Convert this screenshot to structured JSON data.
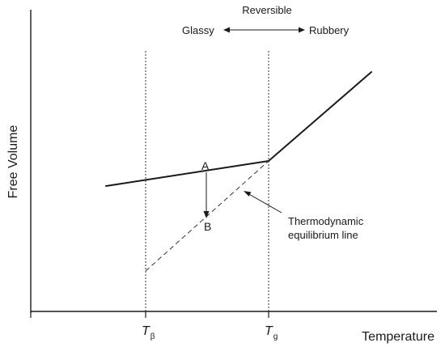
{
  "axes": {
    "y_label": "Free Volume",
    "x_label": "Temperature"
  },
  "transition": {
    "title": "Reversible",
    "left": "Glassy",
    "right": "Rubbery"
  },
  "ticks": {
    "t_beta": {
      "symbol": "T",
      "subscript": "β"
    },
    "t_g": {
      "symbol": "T",
      "subscript": "g"
    }
  },
  "points": {
    "a": "A",
    "b": "B"
  },
  "annotation": {
    "line1": "Thermodynamic",
    "line2": "equilibrium line"
  }
}
